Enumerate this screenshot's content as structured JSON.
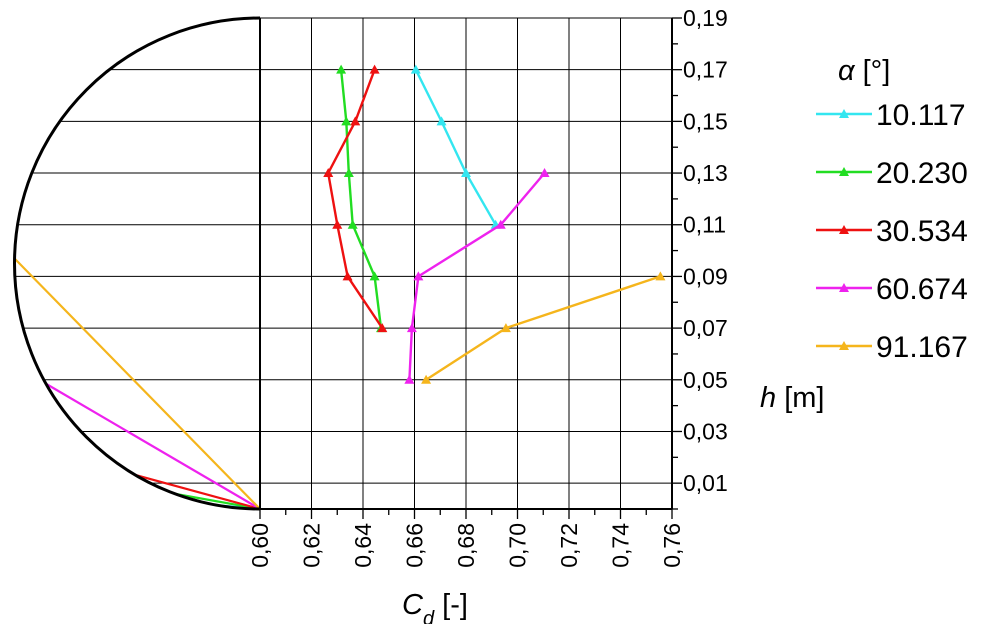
{
  "chart_data": {
    "type": "line",
    "xlabel": "C",
    "xlabel_sub": "d",
    "xlabel_unit": " [-]",
    "ylabel": "h",
    "ylabel_unit": " [m]",
    "legend_title": "α",
    "legend_title_unit": " [°]",
    "xlim": [
      0.6,
      0.76
    ],
    "ylim": [
      0,
      0.19
    ],
    "x_ticks": [
      "0,60",
      "0,62",
      "0,64",
      "0,66",
      "0,68",
      "0,70",
      "0,72",
      "0,74",
      "0,76"
    ],
    "y_ticks": [
      "0,01",
      "0,03",
      "0,05",
      "0,07",
      "0,09",
      "0,11",
      "0,13",
      "0,15",
      "0,17",
      "0,19"
    ],
    "grid": true,
    "legend_position": "right",
    "series": [
      {
        "name": "10.117",
        "color": "#33e6f0",
        "points": [
          [
            0.6605,
            0.17
          ],
          [
            0.6705,
            0.15
          ],
          [
            0.68,
            0.13
          ],
          [
            0.6915,
            0.11
          ]
        ]
      },
      {
        "name": "20.230",
        "color": "#22dd22",
        "points": [
          [
            0.6315,
            0.17
          ],
          [
            0.6335,
            0.15
          ],
          [
            0.6345,
            0.13
          ],
          [
            0.636,
            0.11
          ],
          [
            0.6445,
            0.09
          ],
          [
            0.647,
            0.07
          ]
        ]
      },
      {
        "name": "30.534",
        "color": "#ee1111",
        "points": [
          [
            0.6445,
            0.17
          ],
          [
            0.637,
            0.15
          ],
          [
            0.6265,
            0.13
          ],
          [
            0.63,
            0.11
          ],
          [
            0.634,
            0.09
          ],
          [
            0.6475,
            0.07
          ]
        ]
      },
      {
        "name": "60.674",
        "color": "#ee22ee",
        "points": [
          [
            0.7105,
            0.13
          ],
          [
            0.6935,
            0.11
          ],
          [
            0.6615,
            0.09
          ],
          [
            0.659,
            0.07
          ],
          [
            0.658,
            0.05
          ]
        ]
      },
      {
        "name": "91.167",
        "color": "#f5b51c",
        "points": [
          [
            0.7555,
            0.09
          ],
          [
            0.6955,
            0.07
          ],
          [
            0.6645,
            0.05
          ]
        ]
      }
    ],
    "schematic_angles": [
      {
        "angle": 10.117,
        "color": "#33e6f0"
      },
      {
        "angle": 20.23,
        "color": "#22dd22"
      },
      {
        "angle": 30.534,
        "color": "#ee1111"
      },
      {
        "angle": 60.674,
        "color": "#ee22ee"
      },
      {
        "angle": 91.167,
        "color": "#f5b51c"
      }
    ]
  }
}
